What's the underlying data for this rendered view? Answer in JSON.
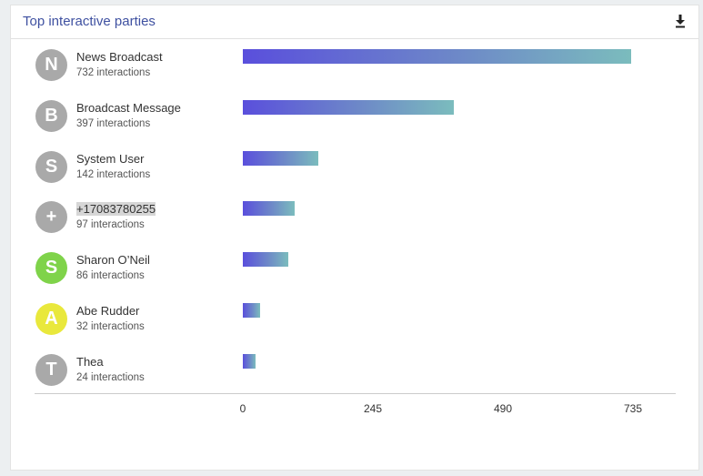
{
  "header": {
    "title": "Top interactive parties",
    "download_icon": "download-icon"
  },
  "colors": {
    "title": "#3f51a1",
    "avatar_default": "#a9a9a9",
    "avatar_green": "#7fd34a",
    "avatar_yellow": "#e9e83c",
    "bar_start": "#5a4fdc",
    "bar_end": "#7bbcbd"
  },
  "chart_data": {
    "type": "bar",
    "orientation": "horizontal",
    "categories": [
      "News Broadcast",
      "Broadcast Message",
      "System User",
      "+17083780255",
      "Sharon O’Neil",
      "Abe Rudder",
      "Thea"
    ],
    "values": [
      732,
      397,
      142,
      97,
      86,
      32,
      24
    ],
    "xlim": [
      0,
      735
    ],
    "ticks": [
      "0",
      "245",
      "490",
      "735"
    ],
    "grid": false
  },
  "parties": [
    {
      "initial": "N",
      "name": "News Broadcast",
      "count": "732 interactions",
      "avatar_color": "#a9a9a9",
      "highlight": false
    },
    {
      "initial": "B",
      "name": "Broadcast Message",
      "count": "397 interactions",
      "avatar_color": "#a9a9a9",
      "highlight": false
    },
    {
      "initial": "S",
      "name": "System User",
      "count": "142 interactions",
      "avatar_color": "#a9a9a9",
      "highlight": false
    },
    {
      "initial": "+",
      "name": "+17083780255",
      "count": "97 interactions",
      "avatar_color": "#a9a9a9",
      "highlight": true
    },
    {
      "initial": "S",
      "name": "Sharon O’Neil",
      "count": "86 interactions",
      "avatar_color": "#7fd34a",
      "highlight": false
    },
    {
      "initial": "A",
      "name": "Abe Rudder",
      "count": "32 interactions",
      "avatar_color": "#e9e83c",
      "highlight": false
    },
    {
      "initial": "T",
      "name": "Thea",
      "count": "24 interactions",
      "avatar_color": "#a9a9a9",
      "highlight": false
    }
  ]
}
